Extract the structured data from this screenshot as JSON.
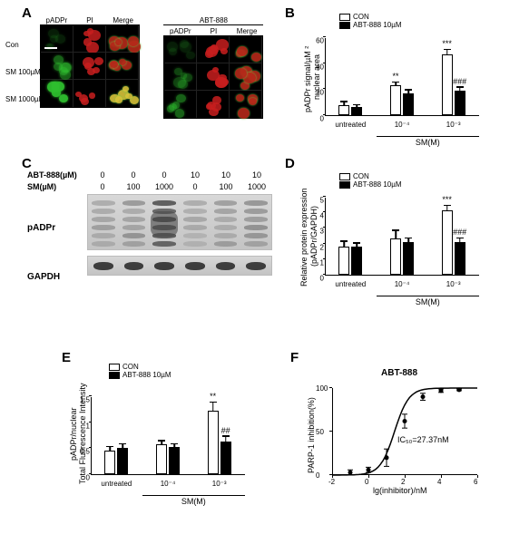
{
  "labels": {
    "A": "A",
    "B": "B",
    "C": "C",
    "D": "D",
    "E": "E",
    "F": "F"
  },
  "panelA": {
    "col_headers": [
      "pADPr",
      "PI",
      "Merge"
    ],
    "abt_header": "ABT-888",
    "row_headers": [
      "Con",
      "SM 100µM",
      "SM 1000µM"
    ],
    "cell_style": {
      "green": "#2fbf2f",
      "red": "#c81e1e",
      "merge_green": "#6bd24a",
      "merge_red": "#b52a1a",
      "merge_yellow": "#d6c23a"
    }
  },
  "legend_common": {
    "con": "CON",
    "abt": "ABT-888 10µM"
  },
  "panelB": {
    "ylabel": "pADPr signal/µM²\nnuclear area",
    "ylim": [
      0,
      60
    ],
    "ytick_step": 20,
    "groups": [
      "untreated",
      "10⁻⁴",
      "10⁻³"
    ],
    "xaxis_title": "SM(M)",
    "bars": {
      "con": [
        8,
        23,
        47
      ],
      "abt": [
        6,
        17,
        19
      ]
    },
    "err": {
      "con": [
        2,
        2,
        3
      ],
      "abt": [
        1.5,
        2,
        2
      ]
    },
    "sig": [
      "",
      "**",
      "***"
    ],
    "sig_abt": [
      "",
      "",
      "###"
    ]
  },
  "panelC": {
    "abt_row": {
      "name": "ABT-888(µM)",
      "vals": [
        "0",
        "0",
        "0",
        "10",
        "10",
        "10"
      ]
    },
    "sm_row": {
      "name": "SM(µM)",
      "vals": [
        "0",
        "100",
        "1000",
        "0",
        "100",
        "1000"
      ]
    },
    "labels": {
      "padpr": "pADPr",
      "gapdh": "GAPDH"
    },
    "blot": {
      "background": "#cfcfcf",
      "band_colors": {
        "dark": "#4a4a4a",
        "mid": "#777",
        "light": "#a0a0a0"
      },
      "gapdh_color": "#2e2e2e"
    }
  },
  "panelD": {
    "ylabel": "Relative protein expression\n(pADPr/GAPDH)",
    "ylim": [
      0,
      5
    ],
    "ytick_step": 1,
    "groups": [
      "untreated",
      "10⁻⁴",
      "10⁻³"
    ],
    "xaxis_title": "SM(M)",
    "bars": {
      "con": [
        1.8,
        2.3,
        4.1
      ],
      "abt": [
        1.8,
        2.1,
        2.1
      ]
    },
    "err": {
      "con": [
        0.3,
        0.5,
        0.3
      ],
      "abt": [
        0.2,
        0.2,
        0.2
      ]
    },
    "sig": [
      "",
      "",
      "***"
    ],
    "sig_abt": [
      "",
      "",
      "###"
    ]
  },
  "panelE": {
    "ylabel": "pADPr/nuclear\nTotal Fluorescence Intensity",
    "ylim": [
      0,
      1.5
    ],
    "ytick_step": 0.5,
    "groups": [
      "untreated",
      "10⁻⁴",
      "10⁻³"
    ],
    "xaxis_title": "SM(M)",
    "bars": {
      "con": [
        0.45,
        0.58,
        1.22
      ],
      "abt": [
        0.5,
        0.52,
        0.62
      ]
    },
    "err": {
      "con": [
        0.07,
        0.05,
        0.15
      ],
      "abt": [
        0.07,
        0.05,
        0.1
      ]
    },
    "sig": [
      "",
      "",
      "**"
    ],
    "sig_abt": [
      "",
      "",
      "##"
    ]
  },
  "panelF": {
    "title": "ABT-888",
    "ylabel": "PARP-1 inhibition(%)",
    "xlabel": "lg(inhibitor)/nM",
    "ic50_label": "IC₅₀=27.37nM",
    "xlim": [
      -2,
      6
    ],
    "xtick_step": 2,
    "ylim": [
      0,
      100
    ],
    "ytick_step": 50,
    "points_x": [
      -1,
      0,
      1,
      2,
      3,
      4,
      5
    ],
    "points_y": [
      3,
      6,
      20,
      62,
      90,
      97,
      98
    ],
    "err_y": [
      3,
      3,
      10,
      8,
      4,
      2,
      1
    ],
    "colors": {
      "curve": "#000",
      "bg": "#ffffff"
    }
  }
}
